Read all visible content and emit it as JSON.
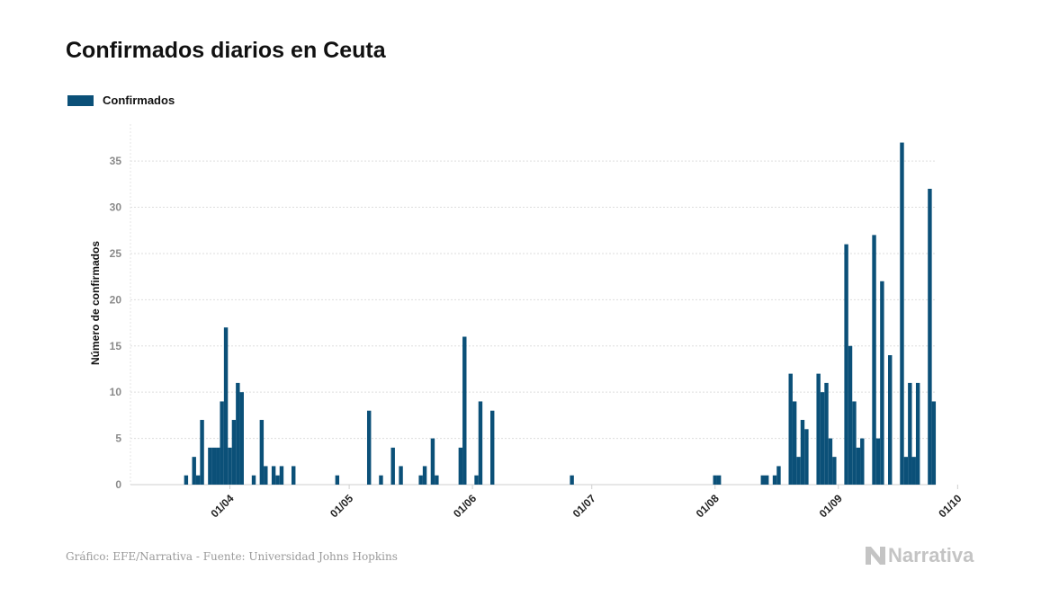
{
  "chart_data": {
    "type": "bar",
    "title": "Confirmados diarios en Ceuta",
    "xlabel": "",
    "ylabel": "Número de confirmados",
    "ylim": [
      0,
      39
    ],
    "yticks": [
      0,
      5,
      10,
      15,
      20,
      25,
      30,
      35
    ],
    "grid": true,
    "legend": "top-left",
    "series": [
      {
        "name": "Confirmados",
        "color": "#0b5078",
        "points": [
          [
            "2020-03-21",
            1
          ],
          [
            "2020-03-23",
            3
          ],
          [
            "2020-03-24",
            1
          ],
          [
            "2020-03-25",
            7
          ],
          [
            "2020-03-27",
            4
          ],
          [
            "2020-03-28",
            4
          ],
          [
            "2020-03-29",
            4
          ],
          [
            "2020-03-30",
            9
          ],
          [
            "2020-03-31",
            17
          ],
          [
            "2020-04-01",
            4
          ],
          [
            "2020-04-02",
            7
          ],
          [
            "2020-04-03",
            11
          ],
          [
            "2020-04-04",
            10
          ],
          [
            "2020-04-07",
            1
          ],
          [
            "2020-04-09",
            7
          ],
          [
            "2020-04-10",
            2
          ],
          [
            "2020-04-12",
            2
          ],
          [
            "2020-04-13",
            1
          ],
          [
            "2020-04-14",
            2
          ],
          [
            "2020-04-17",
            2
          ],
          [
            "2020-04-28",
            1
          ],
          [
            "2020-05-06",
            8
          ],
          [
            "2020-05-09",
            1
          ],
          [
            "2020-05-12",
            4
          ],
          [
            "2020-05-14",
            2
          ],
          [
            "2020-05-19",
            1
          ],
          [
            "2020-05-20",
            2
          ],
          [
            "2020-05-22",
            5
          ],
          [
            "2020-05-23",
            1
          ],
          [
            "2020-05-29",
            4
          ],
          [
            "2020-05-30",
            16
          ],
          [
            "2020-06-02",
            1
          ],
          [
            "2020-06-03",
            9
          ],
          [
            "2020-06-06",
            8
          ],
          [
            "2020-06-26",
            1
          ],
          [
            "2020-08-01",
            1
          ],
          [
            "2020-08-02",
            1
          ],
          [
            "2020-08-13",
            1
          ],
          [
            "2020-08-14",
            1
          ],
          [
            "2020-08-16",
            1
          ],
          [
            "2020-08-17",
            2
          ],
          [
            "2020-08-20",
            12
          ],
          [
            "2020-08-21",
            9
          ],
          [
            "2020-08-22",
            3
          ],
          [
            "2020-08-23",
            7
          ],
          [
            "2020-08-24",
            6
          ],
          [
            "2020-08-27",
            12
          ],
          [
            "2020-08-28",
            10
          ],
          [
            "2020-08-29",
            11
          ],
          [
            "2020-08-30",
            5
          ],
          [
            "2020-08-31",
            3
          ],
          [
            "2020-09-03",
            26
          ],
          [
            "2020-09-04",
            15
          ],
          [
            "2020-09-05",
            9
          ],
          [
            "2020-09-06",
            4
          ],
          [
            "2020-09-07",
            5
          ],
          [
            "2020-09-10",
            27
          ],
          [
            "2020-09-11",
            5
          ],
          [
            "2020-09-12",
            22
          ],
          [
            "2020-09-14",
            14
          ],
          [
            "2020-09-17",
            37
          ],
          [
            "2020-09-18",
            3
          ],
          [
            "2020-09-19",
            11
          ],
          [
            "2020-09-20",
            3
          ],
          [
            "2020-09-21",
            11
          ],
          [
            "2020-09-24",
            32
          ],
          [
            "2020-09-25",
            9
          ]
        ]
      }
    ],
    "xticks": [
      {
        "date": "2020-04-01",
        "label": "01/04"
      },
      {
        "date": "2020-05-01",
        "label": "01/05"
      },
      {
        "date": "2020-06-01",
        "label": "01/06"
      },
      {
        "date": "2020-07-01",
        "label": "01/07"
      },
      {
        "date": "2020-08-01",
        "label": "01/08"
      },
      {
        "date": "2020-09-01",
        "label": "01/09"
      },
      {
        "date": "2020-10-01",
        "label": "01/10"
      }
    ]
  },
  "footer": {
    "source": "Gráfico: EFE/Narrativa - Fuente: Universidad Johns Hopkins",
    "logo": "Narrativa",
    "logo_icon": "narrativa-logo-icon"
  },
  "colors": {
    "bar": "#0b5078",
    "grid": "#dddddd",
    "tick_text": "#8a8a8a"
  }
}
